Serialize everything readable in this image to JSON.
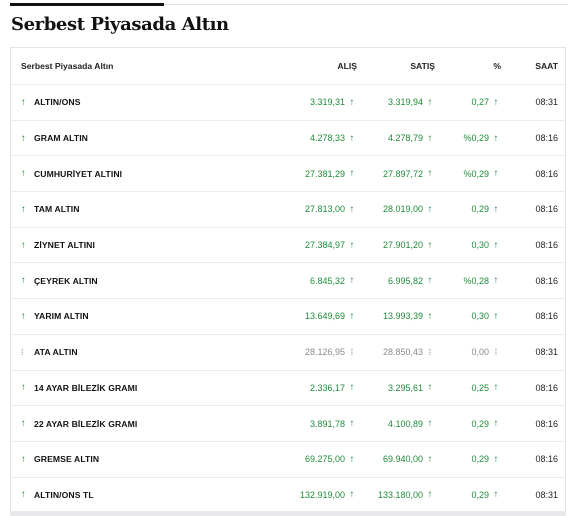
{
  "page": {
    "title": "Serbest Piyasada Altın"
  },
  "table": {
    "headers": {
      "name": "Serbest Piyasada Altın",
      "buy": "ALIŞ",
      "sell": "SATIŞ",
      "pct": "%",
      "time": "SAAT"
    },
    "rows": [
      {
        "name": "ALTIN/ONS",
        "buy": "3.319,31",
        "sell": "3.319,94",
        "pct": "0,27",
        "time": "08:31",
        "trend": "up",
        "buy_icon": "↑",
        "sell_icon": "↑",
        "pct_icon": "↑",
        "row_icon": "↑"
      },
      {
        "name": "GRAM ALTIN",
        "buy": "4.278,33",
        "sell": "4.278,79",
        "pct": "%0,29",
        "time": "08:16",
        "trend": "up",
        "buy_icon": "↑",
        "sell_icon": "↑",
        "pct_icon": "↑",
        "row_icon": "↑"
      },
      {
        "name": "CUMHURİYET ALTINI",
        "buy": "27.381,29",
        "sell": "27.897,72",
        "pct": "%0,29",
        "time": "08:16",
        "trend": "up",
        "buy_icon": "↑",
        "sell_icon": "↑",
        "pct_icon": "↑",
        "row_icon": "↑"
      },
      {
        "name": "TAM ALTIN",
        "buy": "27.813,00",
        "sell": "28.019,00",
        "pct": "0,29",
        "time": "08:16",
        "trend": "up",
        "buy_icon": "↑",
        "sell_icon": "↑",
        "pct_icon": "↑",
        "row_icon": "↑"
      },
      {
        "name": "ZİYNET ALTINI",
        "buy": "27.384,97",
        "sell": "27.901,20",
        "pct": "0,30",
        "time": "08:16",
        "trend": "up",
        "buy_icon": "↑",
        "sell_icon": "↑",
        "pct_icon": "↑",
        "row_icon": "↑"
      },
      {
        "name": "ÇEYREK ALTIN",
        "buy": "6.845,32",
        "sell": "6.995,82",
        "pct": "%0,28",
        "time": "08:16",
        "trend": "up",
        "buy_icon": "↑",
        "sell_icon": "↑",
        "pct_icon": "↑",
        "row_icon": "↑"
      },
      {
        "name": "YARIM ALTIN",
        "buy": "13.649,69",
        "sell": "13.993,39",
        "pct": "0,30",
        "time": "08:16",
        "trend": "up",
        "buy_icon": "↑",
        "sell_icon": "↑",
        "pct_icon": "↑",
        "row_icon": "↑"
      },
      {
        "name": "ATA ALTIN",
        "buy": "28.126,95",
        "sell": "28.850,43",
        "pct": "0,00",
        "time": "08:31",
        "trend": "flat",
        "buy_icon": "⁞",
        "sell_icon": "⁞",
        "pct_icon": "⁞",
        "row_icon": "⁞"
      },
      {
        "name": "14 AYAR BİLEZİK GRAMI",
        "buy": "2.336,17",
        "sell": "3.295,61",
        "pct": "0,25",
        "time": "08:16",
        "trend": "up",
        "buy_icon": "↑",
        "sell_icon": "↑",
        "pct_icon": "↑",
        "row_icon": "↑"
      },
      {
        "name": "22 AYAR BİLEZİK GRAMI",
        "buy": "3.891,78",
        "sell": "4.100,89",
        "pct": "0,29",
        "time": "08:16",
        "trend": "up",
        "buy_icon": "↑",
        "sell_icon": "↑",
        "pct_icon": "↑",
        "row_icon": "↑"
      },
      {
        "name": "GREMSE ALTIN",
        "buy": "69.275,00",
        "sell": "69.940,00",
        "pct": "0,29",
        "time": "08:16",
        "trend": "up",
        "buy_icon": "↑",
        "sell_icon": "↑",
        "pct_icon": "↑",
        "row_icon": "↑"
      },
      {
        "name": "ALTIN/ONS TL",
        "buy": "132.919,00",
        "sell": "133.180,00",
        "pct": "0,29",
        "time": "08:31",
        "trend": "up",
        "buy_icon": "↑",
        "sell_icon": "↑",
        "pct_icon": "↑",
        "row_icon": "↑"
      }
    ]
  },
  "colors": {
    "up": "#1f8b3a",
    "flat": "#8a8a8a",
    "title": "#111111"
  }
}
